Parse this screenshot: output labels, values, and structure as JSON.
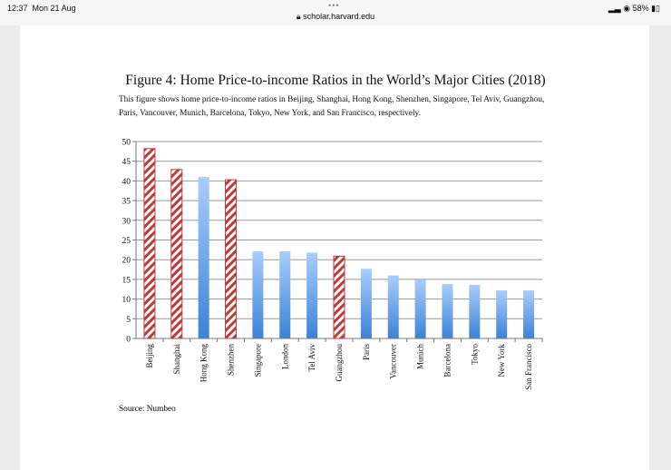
{
  "status_bar": {
    "time": "12:37",
    "date": "Mon 21 Aug",
    "url": "scholar.harvard.edu",
    "battery": "58%"
  },
  "figure": {
    "title": "Figure 4: Home Price-to-income Ratios in the World’s Major Cities (2018)",
    "description": "This figure shows home price-to-income ratios in Beijing, Shanghai, Hong Kong, Shenzhen, Singapore, Tel Aviv, Guangzhou, Paris, Vancouver, Munich, Barcelona, Tokyo, New York, and San Francisco, respectively.",
    "source": "Source: Numbeo"
  },
  "chart_data": {
    "type": "bar",
    "title": "Home Price-to-income Ratios in the World’s Major Cities (2018)",
    "categories": [
      "Beijing",
      "Shanghai",
      "Hong Kong",
      "Shenzhen",
      "Singapore",
      "London",
      "Tel Aviv",
      "Guangzhou",
      "Paris",
      "Vancouver",
      "Munich",
      "Barcelona",
      "Tokyo",
      "New York",
      "San Francisco"
    ],
    "values": [
      48.2,
      42.9,
      41.0,
      40.3,
      22.1,
      22.1,
      21.8,
      20.9,
      17.7,
      16.0,
      14.9,
      13.8,
      13.6,
      12.2,
      12.2
    ],
    "mainland_china": [
      true,
      true,
      false,
      true,
      false,
      false,
      false,
      true,
      false,
      false,
      false,
      false,
      false,
      false,
      false
    ],
    "ylim": [
      0,
      50
    ],
    "yticks": [
      0,
      5,
      10,
      15,
      20,
      25,
      30,
      35,
      40,
      45,
      50
    ],
    "grid": true,
    "xlabel": "",
    "ylabel": "",
    "colors": {
      "hatch": "#c0393b",
      "bar_top": "#a9cdfb",
      "bar_bottom": "#3c82d6"
    }
  }
}
